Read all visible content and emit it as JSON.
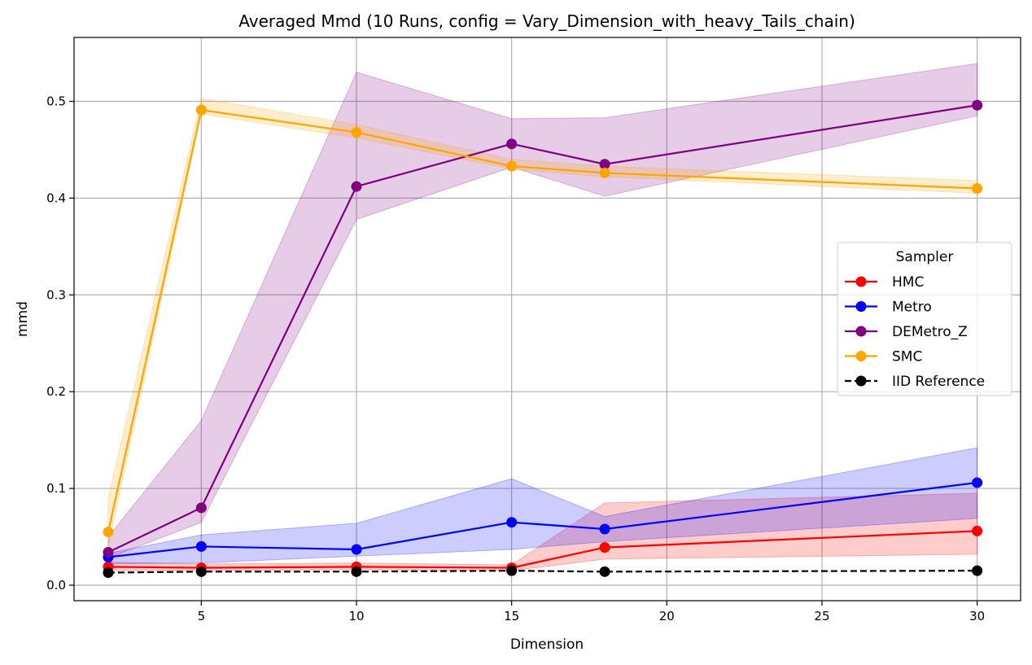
{
  "chart_data": {
    "type": "line",
    "title": "Averaged Mmd (10 Runs, config = Vary_Dimension_with_heavy_Tails_chain)",
    "xlabel": "Dimension",
    "ylabel": "mmd",
    "xlim": [
      0.9,
      31.4
    ],
    "ylim": [
      -0.016,
      0.566
    ],
    "xticks": [
      5,
      10,
      15,
      20,
      25,
      30
    ],
    "yticks": [
      0.0,
      0.1,
      0.2,
      0.3,
      0.4,
      0.5
    ],
    "xtick_labels": [
      "5",
      "10",
      "15",
      "20",
      "25",
      "30"
    ],
    "ytick_labels": [
      "0.0",
      "0.1",
      "0.2",
      "0.3",
      "0.4",
      "0.5"
    ],
    "grid": true,
    "legend": {
      "title": "Sampler",
      "placement": "center-right"
    },
    "x": [
      2,
      5,
      10,
      15,
      18,
      30
    ],
    "series": [
      {
        "name": "HMC",
        "color": "#ff0000",
        "values": [
          0.019,
          0.018,
          0.019,
          0.018,
          0.039,
          0.056
        ],
        "lower": [
          0.015,
          0.015,
          0.016,
          0.015,
          0.027,
          0.032
        ],
        "upper": [
          0.024,
          0.022,
          0.023,
          0.021,
          0.085,
          0.095
        ],
        "band": true
      },
      {
        "name": "Metro",
        "color": "#0000ff",
        "values": [
          0.029,
          0.04,
          0.037,
          0.065,
          0.058,
          0.106
        ],
        "lower": [
          0.022,
          0.023,
          0.03,
          0.037,
          0.045,
          0.069
        ],
        "upper": [
          0.033,
          0.052,
          0.064,
          0.11,
          0.071,
          0.142
        ],
        "band": true
      },
      {
        "name": "DEMetro_Z",
        "color": "#800080",
        "values": [
          0.034,
          0.08,
          0.412,
          0.456,
          0.435,
          0.496
        ],
        "lower": [
          0.028,
          0.065,
          0.378,
          0.432,
          0.402,
          0.485
        ],
        "upper": [
          0.05,
          0.17,
          0.53,
          0.482,
          0.483,
          0.539
        ],
        "band": true
      },
      {
        "name": "SMC",
        "color": "#ffa500",
        "values": [
          0.055,
          0.491,
          0.468,
          0.433,
          0.426,
          0.41
        ],
        "lower": [
          0.04,
          0.487,
          0.462,
          0.43,
          0.422,
          0.405
        ],
        "upper": [
          0.09,
          0.503,
          0.476,
          0.44,
          0.433,
          0.418
        ],
        "band": true
      },
      {
        "name": "IID Reference",
        "color": "#000000",
        "dashed": true,
        "values": [
          0.013,
          0.014,
          0.014,
          0.015,
          0.014,
          0.015
        ],
        "band": false
      }
    ]
  }
}
